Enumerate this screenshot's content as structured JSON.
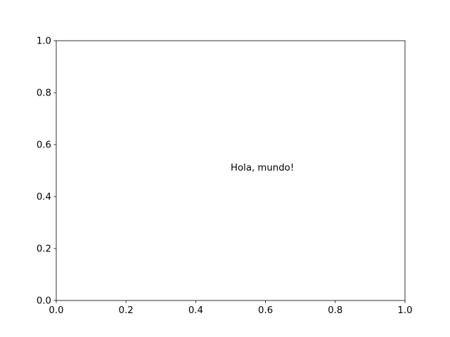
{
  "chart_data": {
    "type": "scatter",
    "title": "",
    "xlabel": "",
    "ylabel": "",
    "xlim": [
      0,
      1
    ],
    "ylim": [
      0,
      1
    ],
    "xticks": [
      "0.0",
      "0.2",
      "0.4",
      "0.6",
      "0.8",
      "1.0"
    ],
    "yticks": [
      "0.0",
      "0.2",
      "0.4",
      "0.6",
      "0.8",
      "1.0"
    ],
    "grid": false,
    "series": [],
    "annotations": [
      {
        "text": "Hola, mundo!",
        "x": 0.5,
        "y": 0.5
      }
    ]
  }
}
